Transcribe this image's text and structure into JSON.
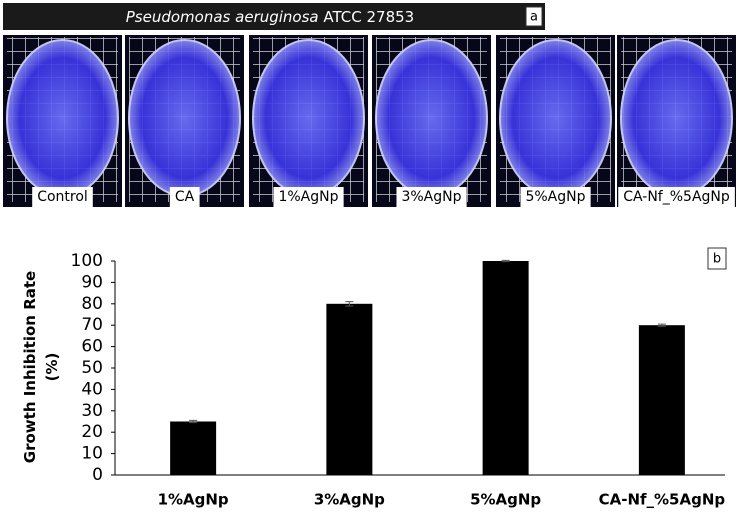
{
  "panel_a": {
    "title_italic": "Pseudomonas aeruginosa",
    "title_rest": "ATCC 27853",
    "label": "a",
    "plates": [
      "Control",
      "CA",
      "1%AgNp",
      "3%AgNp",
      "5%AgNp",
      "CA-Nf_%5AgNp"
    ]
  },
  "chart_data": {
    "type": "bar",
    "panel_label": "b",
    "y_label_lines": [
      "Growth Inhibition Rate",
      "(%)"
    ],
    "categories": [
      "1%AgNp",
      "3%AgNp",
      "5%AgNp",
      "CA-Nf_%5AgNp"
    ],
    "values": [
      25,
      80,
      100,
      70
    ],
    "errors": [
      0.5,
      1,
      0.3,
      0.5
    ],
    "color": "#000000",
    "ylim": [
      0,
      100
    ],
    "yticks": [
      0,
      10,
      20,
      30,
      40,
      50,
      60,
      70,
      80,
      90,
      100
    ],
    "grid": false
  }
}
